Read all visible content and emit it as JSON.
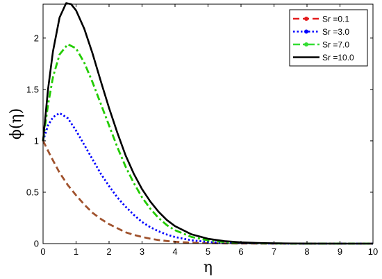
{
  "chart_data": {
    "type": "line",
    "xlabel": "η",
    "ylabel": "ϕ(η)",
    "xlim": [
      0,
      10
    ],
    "ylim": [
      0,
      2.33
    ],
    "xticks": [
      "0",
      "1",
      "2",
      "3",
      "4",
      "5",
      "6",
      "7",
      "8",
      "9",
      "10"
    ],
    "yticks": [
      "0",
      "0.5",
      "1",
      "1.5",
      "2"
    ],
    "grid": false,
    "legend_position": "top-right",
    "series": [
      {
        "name": "Sr =0.1",
        "color": "#a0522d",
        "legend_color": "#e31a1c",
        "style": "dashed",
        "x": [
          0,
          0.25,
          0.5,
          0.75,
          1,
          1.25,
          1.5,
          1.75,
          2,
          2.25,
          2.5,
          2.75,
          3,
          3.25,
          3.5,
          3.75,
          4,
          4.5,
          5,
          5.5,
          6,
          6.5,
          7,
          8,
          9,
          10
        ],
        "y": [
          1.0,
          0.84,
          0.69,
          0.57,
          0.47,
          0.38,
          0.3,
          0.24,
          0.19,
          0.15,
          0.11,
          0.085,
          0.065,
          0.048,
          0.035,
          0.025,
          0.018,
          0.009,
          0.004,
          0.002,
          0.001,
          0.0005,
          0.0002,
          0,
          0,
          0
        ]
      },
      {
        "name": "Sr =3.0",
        "color": "#0000ff",
        "style": "dotted",
        "x": [
          0,
          0.15,
          0.3,
          0.5,
          0.75,
          1,
          1.25,
          1.5,
          1.75,
          2,
          2.25,
          2.5,
          2.75,
          3,
          3.25,
          3.5,
          3.75,
          4,
          4.5,
          5,
          5.5,
          6,
          6.5,
          7,
          8,
          9,
          10
        ],
        "y": [
          1.0,
          1.15,
          1.23,
          1.27,
          1.22,
          1.1,
          0.96,
          0.82,
          0.68,
          0.56,
          0.45,
          0.36,
          0.28,
          0.21,
          0.16,
          0.12,
          0.088,
          0.064,
          0.032,
          0.016,
          0.008,
          0.004,
          0.002,
          0.001,
          0,
          0,
          0
        ]
      },
      {
        "name": "Sr =7.0",
        "color": "#22cc00",
        "legend_color": "#33dd33",
        "style": "dashdot",
        "x": [
          0,
          0.15,
          0.3,
          0.5,
          0.75,
          1,
          1.25,
          1.5,
          1.75,
          2,
          2.25,
          2.5,
          2.75,
          3,
          3.25,
          3.5,
          3.75,
          4,
          4.5,
          5,
          5.5,
          6,
          6.5,
          7,
          8,
          9,
          10
        ],
        "y": [
          1.0,
          1.35,
          1.62,
          1.84,
          1.94,
          1.9,
          1.76,
          1.57,
          1.36,
          1.15,
          0.94,
          0.75,
          0.59,
          0.45,
          0.34,
          0.25,
          0.18,
          0.13,
          0.065,
          0.032,
          0.015,
          0.007,
          0.003,
          0.0015,
          0,
          0,
          0
        ]
      },
      {
        "name": "Sr =10.0",
        "color": "#000000",
        "style": "solid",
        "x": [
          0,
          0.15,
          0.3,
          0.5,
          0.7,
          0.85,
          1,
          1.25,
          1.5,
          1.75,
          2,
          2.25,
          2.5,
          2.75,
          3,
          3.25,
          3.5,
          3.75,
          4,
          4.5,
          5,
          5.5,
          6,
          6.5,
          7,
          7.5,
          8,
          9,
          10
        ],
        "y": [
          1.0,
          1.5,
          1.87,
          2.2,
          2.34,
          2.33,
          2.27,
          2.09,
          1.85,
          1.58,
          1.32,
          1.08,
          0.86,
          0.68,
          0.53,
          0.41,
          0.31,
          0.23,
          0.17,
          0.09,
          0.047,
          0.024,
          0.012,
          0.006,
          0.003,
          0.0015,
          0.0007,
          0,
          0
        ]
      }
    ]
  }
}
